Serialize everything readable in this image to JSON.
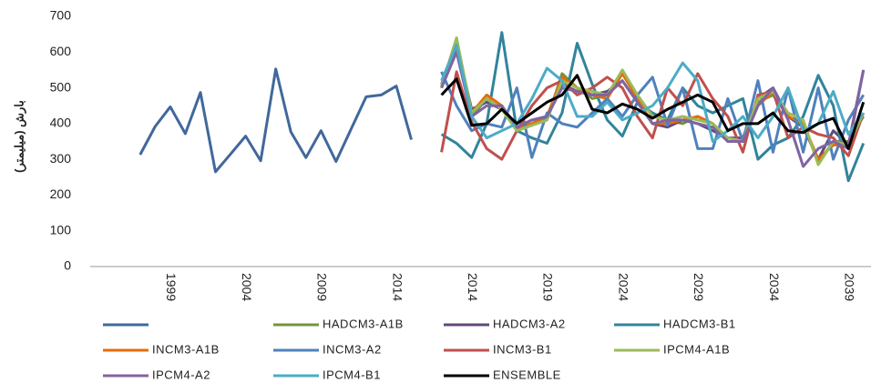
{
  "chart_data": {
    "type": "line",
    "y_label": "بارش (میلیمتر)",
    "categories": [
      null,
      null,
      null,
      "1999",
      null,
      null,
      null,
      null,
      "2004",
      null,
      null,
      null,
      null,
      "2009",
      null,
      null,
      null,
      null,
      "2014",
      null,
      null,
      null,
      null,
      "2014",
      null,
      null,
      null,
      null,
      "2019",
      null,
      null,
      null,
      null,
      "2024",
      null,
      null,
      null,
      null,
      "2029",
      null,
      null,
      null,
      null,
      "2034",
      null,
      null,
      null,
      null,
      "2039",
      null
    ],
    "ylim": [
      0,
      700
    ],
    "yticks": [
      0,
      100,
      200,
      300,
      400,
      500,
      600,
      700
    ],
    "grid": false,
    "series": [
      {
        "color": "#41689b",
        "values": [
          null,
          313,
          392,
          447,
          372,
          487,
          265,
          315,
          365,
          296,
          553,
          377,
          305,
          380,
          294,
          385,
          475,
          480,
          505,
          355,
          null,
          null,
          null,
          null,
          null,
          null,
          null,
          null,
          null,
          null,
          null,
          null,
          null,
          null,
          null,
          null,
          null,
          null,
          null,
          null,
          null,
          null,
          null,
          null,
          null,
          null,
          null,
          null,
          null,
          null
        ]
      },
      {
        "name": "HADCM3-A1B",
        "color": "#77933c",
        "values": [
          null,
          null,
          null,
          null,
          null,
          null,
          null,
          null,
          null,
          null,
          null,
          null,
          null,
          null,
          null,
          null,
          null,
          null,
          null,
          null,
          null,
          500,
          630,
          420,
          470,
          440,
          380,
          400,
          410,
          540,
          500,
          470,
          480,
          540,
          480,
          420,
          410,
          400,
          420,
          400,
          350,
          350,
          460,
          480,
          420,
          400,
          290,
          350,
          350,
          420
        ]
      },
      {
        "name": "HADCM3-A2",
        "color": "#604a7b",
        "values": [
          null,
          null,
          null,
          null,
          null,
          null,
          null,
          null,
          null,
          null,
          null,
          null,
          null,
          null,
          null,
          null,
          null,
          null,
          null,
          null,
          null,
          510,
          620,
          440,
          460,
          440,
          390,
          410,
          420,
          510,
          490,
          480,
          490,
          520,
          460,
          400,
          390,
          410,
          400,
          380,
          360,
          360,
          470,
          500,
          420,
          390,
          300,
          380,
          340,
          550
        ]
      },
      {
        "name": "HADCM3-B1",
        "color": "#31849b",
        "values": [
          null,
          null,
          null,
          null,
          null,
          null,
          null,
          null,
          null,
          null,
          null,
          null,
          null,
          null,
          null,
          null,
          null,
          null,
          null,
          null,
          null,
          370,
          345,
          305,
          400,
          655,
          380,
          360,
          345,
          430,
          625,
          510,
          410,
          365,
          460,
          430,
          410,
          500,
          450,
          430,
          450,
          470,
          300,
          340,
          360,
          420,
          535,
          450,
          240,
          345
        ]
      },
      {
        "name": "INCM3-A1B",
        "color": "#e46c0a",
        "values": [
          null,
          null,
          null,
          null,
          null,
          null,
          null,
          null,
          null,
          null,
          null,
          null,
          null,
          null,
          null,
          null,
          null,
          null,
          null,
          null,
          null,
          500,
          610,
          430,
          480,
          450,
          390,
          400,
          420,
          530,
          500,
          480,
          470,
          540,
          470,
          400,
          400,
          410,
          420,
          400,
          350,
          350,
          450,
          490,
          420,
          400,
          300,
          340,
          340,
          430
        ]
      },
      {
        "name": "INCM3-A2",
        "color": "#4f81bd",
        "values": [
          null,
          null,
          null,
          null,
          null,
          null,
          null,
          null,
          null,
          null,
          null,
          null,
          null,
          null,
          null,
          null,
          null,
          null,
          null,
          null,
          null,
          545,
          450,
          380,
          400,
          390,
          500,
          305,
          430,
          400,
          390,
          430,
          470,
          420,
          480,
          530,
          395,
          500,
          330,
          330,
          470,
          350,
          520,
          320,
          500,
          320,
          500,
          300,
          410,
          480
        ]
      },
      {
        "name": "INCM3-B1",
        "color": "#c0504d",
        "values": [
          null,
          null,
          null,
          null,
          null,
          null,
          null,
          null,
          null,
          null,
          null,
          null,
          null,
          null,
          null,
          null,
          null,
          null,
          null,
          null,
          null,
          320,
          545,
          405,
          330,
          300,
          380,
          450,
          500,
          520,
          480,
          500,
          530,
          500,
          420,
          360,
          500,
          450,
          540,
          470,
          420,
          320,
          480,
          490,
          360,
          390,
          370,
          360,
          310,
          430
        ]
      },
      {
        "name": "IPCM4-A1B",
        "color": "#9bbb59",
        "values": [
          null,
          null,
          null,
          null,
          null,
          null,
          null,
          null,
          null,
          null,
          null,
          null,
          null,
          null,
          null,
          null,
          null,
          null,
          null,
          null,
          null,
          505,
          640,
          430,
          470,
          440,
          380,
          395,
          410,
          520,
          500,
          490,
          480,
          550,
          480,
          420,
          410,
          420,
          410,
          400,
          360,
          350,
          470,
          490,
          430,
          410,
          285,
          350,
          340,
          430
        ]
      },
      {
        "name": "IPCM4-A2",
        "color": "#8064a2",
        "values": [
          null,
          null,
          null,
          null,
          null,
          null,
          null,
          null,
          null,
          null,
          null,
          null,
          null,
          null,
          null,
          null,
          null,
          null,
          null,
          null,
          null,
          500,
          600,
          420,
          450,
          450,
          390,
          410,
          420,
          500,
          490,
          480,
          480,
          520,
          460,
          400,
          410,
          410,
          400,
          390,
          350,
          350,
          450,
          500,
          410,
          280,
          330,
          350,
          330,
          550
        ]
      },
      {
        "name": "IPCM4-B1",
        "color": "#4bacc6",
        "values": [
          null,
          null,
          null,
          null,
          null,
          null,
          null,
          null,
          null,
          null,
          null,
          null,
          null,
          null,
          null,
          null,
          null,
          null,
          null,
          null,
          null,
          520,
          620,
          420,
          360,
          380,
          400,
          470,
          555,
          520,
          420,
          420,
          460,
          410,
          430,
          450,
          500,
          570,
          520,
          350,
          380,
          420,
          360,
          420,
          500,
          380,
          400,
          490,
          370,
          430
        ]
      },
      {
        "name": "ENSEMBLE",
        "color": "#000000",
        "values": [
          null,
          null,
          null,
          null,
          null,
          null,
          null,
          null,
          null,
          null,
          null,
          null,
          null,
          null,
          null,
          null,
          null,
          null,
          null,
          null,
          null,
          480,
          525,
          395,
          400,
          440,
          400,
          430,
          460,
          480,
          535,
          440,
          430,
          455,
          440,
          415,
          440,
          460,
          480,
          460,
          380,
          400,
          400,
          430,
          380,
          375,
          400,
          415,
          330,
          460
        ]
      }
    ]
  }
}
